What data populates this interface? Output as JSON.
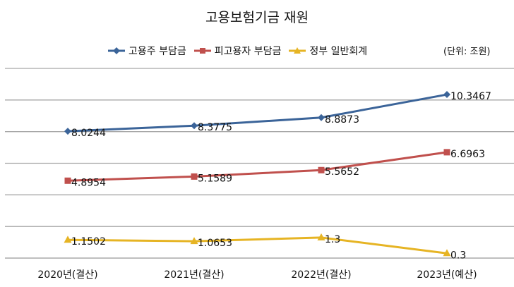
{
  "chart_data": {
    "type": "line",
    "title": "고용보험기금 재원",
    "unit_note": "(단위: 조원)",
    "categories": [
      "2020년(결산)",
      "2021년(결산)",
      "2022년(결산)",
      "2023년(예산)"
    ],
    "series": [
      {
        "name": "고용주 부담금",
        "values": [
          8.0244,
          8.3775,
          8.8873,
          10.3467
        ],
        "labels": [
          "8.0244",
          "8.3775",
          "8.8873",
          "10.3467"
        ],
        "color": "#3b6499",
        "marker": "diamond"
      },
      {
        "name": "피고용자 부담금",
        "values": [
          4.8954,
          5.1589,
          5.5652,
          6.6963
        ],
        "labels": [
          "4.8954",
          "5.1589",
          "5.5652",
          "6.6963"
        ],
        "color": "#c0504d",
        "marker": "square"
      },
      {
        "name": "정부 일반회계",
        "values": [
          1.1502,
          1.0653,
          1.3,
          0.3
        ],
        "labels": [
          "1.1502",
          "1.0653",
          "1.3",
          "0.3"
        ],
        "color": "#e6b424",
        "marker": "triangle"
      }
    ],
    "ylim": [
      0,
      12
    ],
    "ytick_step": 2,
    "grid": true,
    "legend": "top"
  }
}
